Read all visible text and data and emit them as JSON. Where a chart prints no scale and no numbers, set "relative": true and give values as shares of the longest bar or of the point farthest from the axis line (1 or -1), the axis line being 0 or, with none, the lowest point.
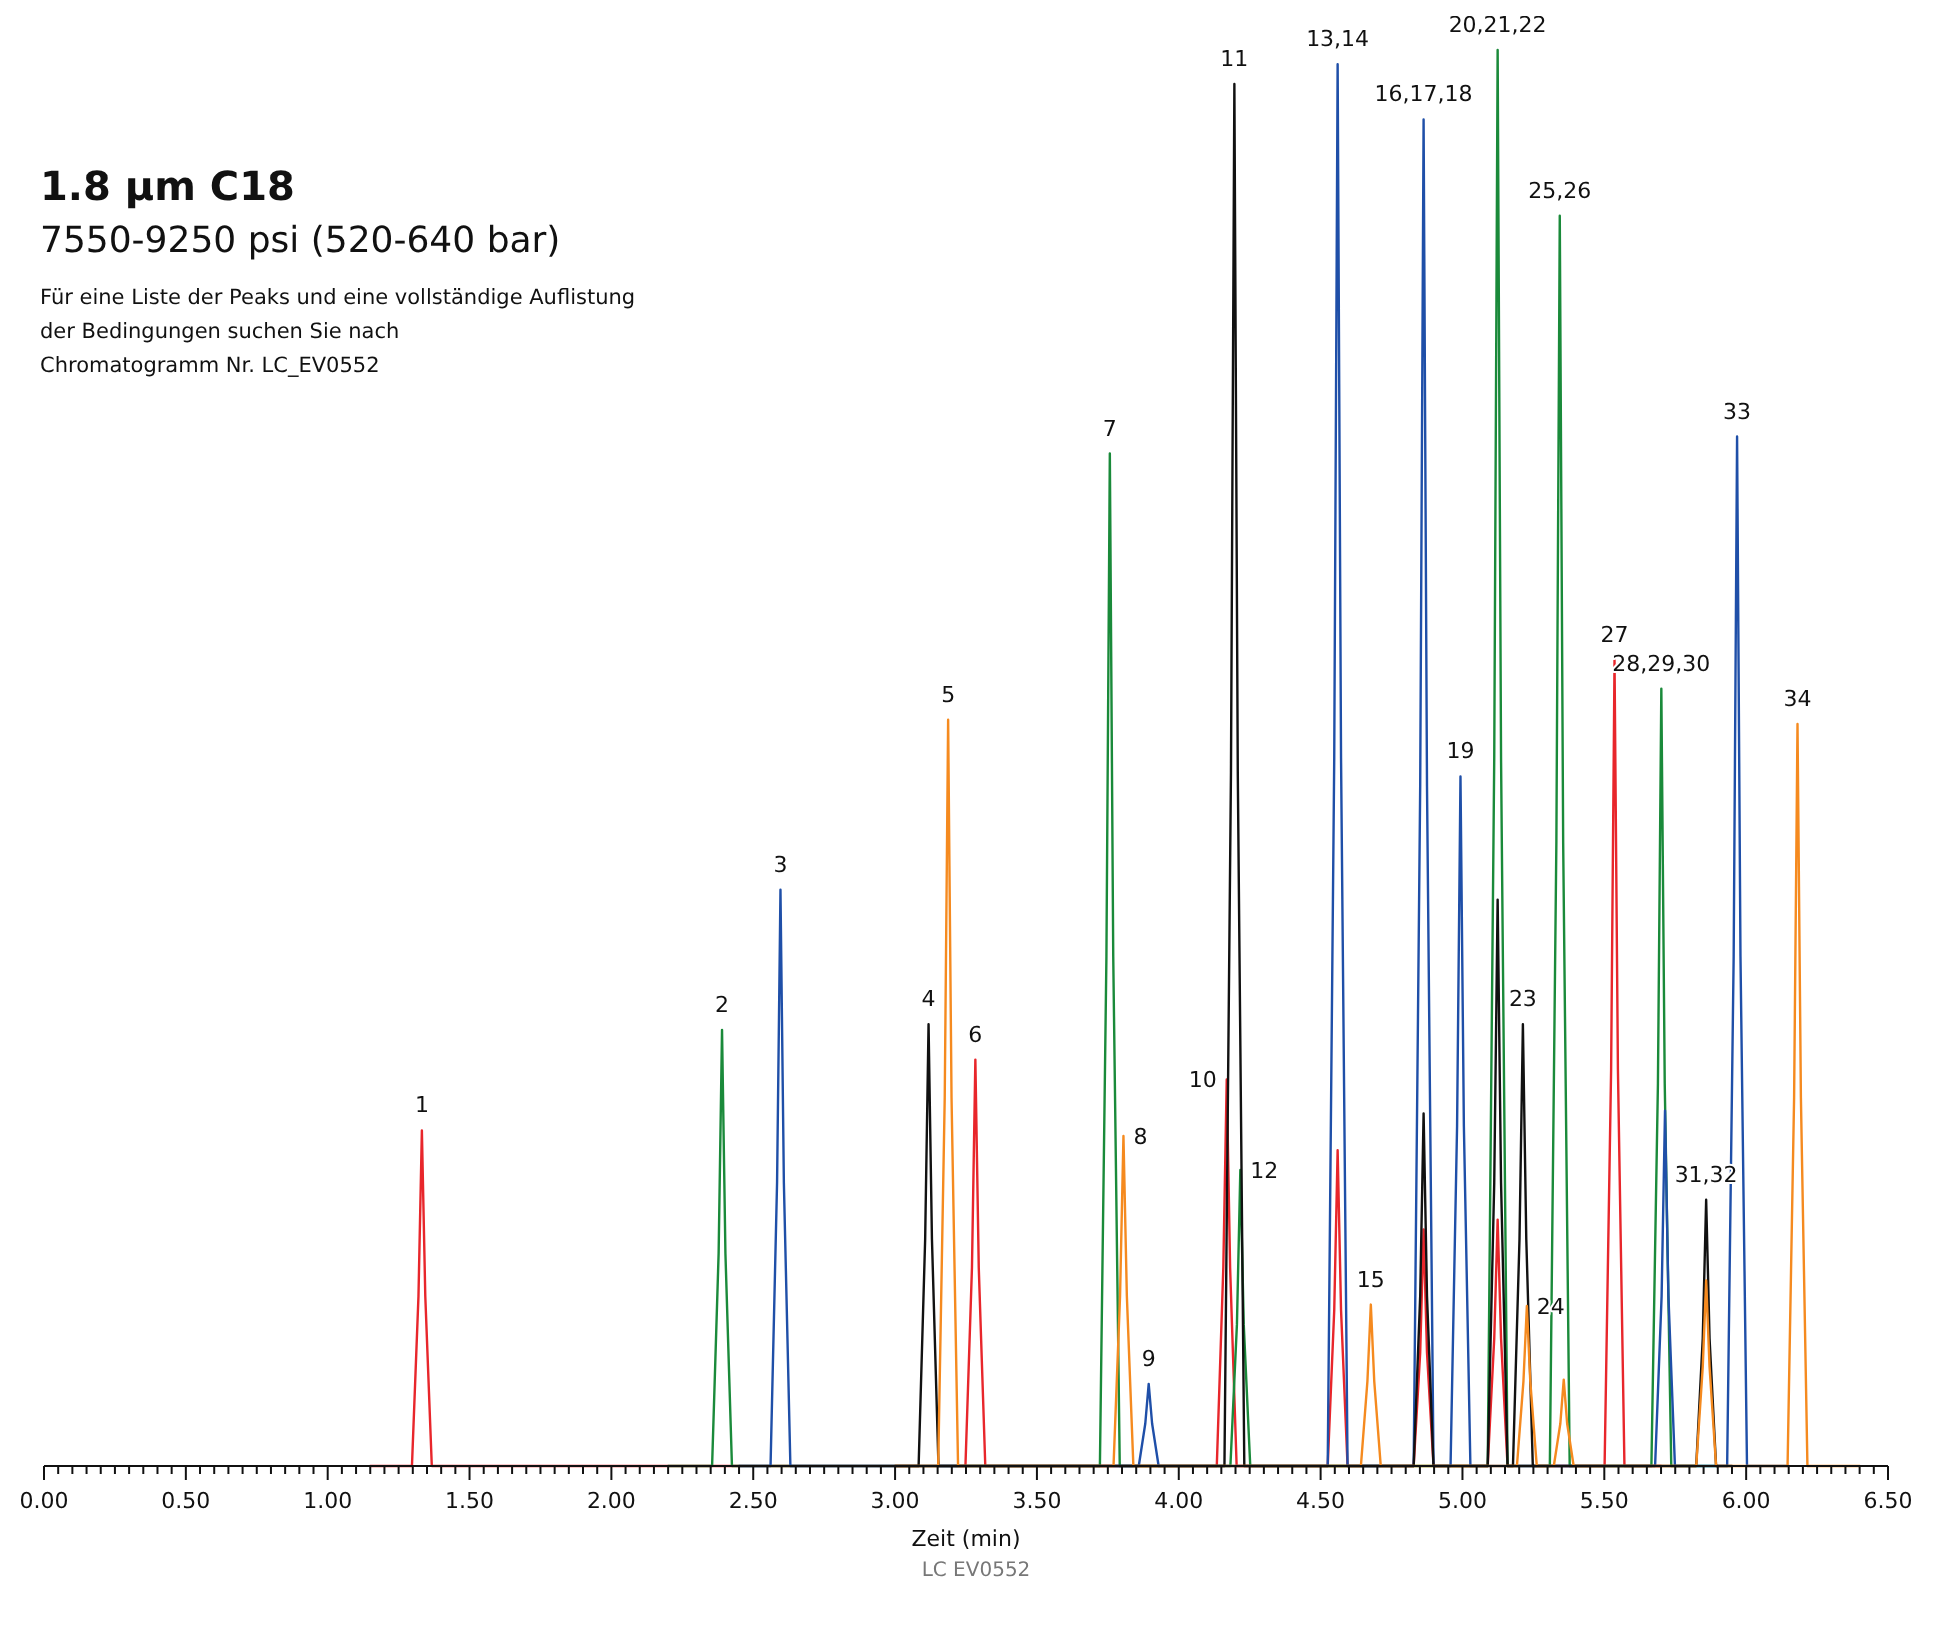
{
  "chart_data": {
    "type": "line",
    "title": "1.8 µm C18",
    "subtitle": "7550-9250 psi (520-640 bar)",
    "xlabel": "Zeit (min)",
    "relative": true,
    "xlim": [
      0,
      6.5
    ],
    "xticks": [
      {
        "value": 0,
        "label": "0.00"
      },
      {
        "value": 0.05,
        "label": null
      },
      {
        "value": 0.1,
        "label": null
      },
      {
        "value": 0.15,
        "label": null
      },
      {
        "value": 0.2,
        "label": null
      },
      {
        "value": 0.25,
        "label": null
      },
      {
        "value": 0.3,
        "label": null
      },
      {
        "value": 0.35,
        "label": null
      },
      {
        "value": 0.4,
        "label": null
      },
      {
        "value": 0.45,
        "label": null
      },
      {
        "value": 0.5,
        "label": "0.50"
      },
      {
        "value": 0.55,
        "label": null
      },
      {
        "value": 0.6,
        "label": null
      },
      {
        "value": 0.65,
        "label": null
      },
      {
        "value": 0.7,
        "label": null
      },
      {
        "value": 0.75,
        "label": null
      },
      {
        "value": 0.8,
        "label": null
      },
      {
        "value": 0.85,
        "label": null
      },
      {
        "value": 0.9,
        "label": null
      },
      {
        "value": 0.95,
        "label": null
      },
      {
        "value": 1,
        "label": "1.00"
      },
      {
        "value": 1.05,
        "label": null
      },
      {
        "value": 1.1,
        "label": null
      },
      {
        "value": 1.15,
        "label": null
      },
      {
        "value": 1.2,
        "label": null
      },
      {
        "value": 1.25,
        "label": null
      },
      {
        "value": 1.3,
        "label": null
      },
      {
        "value": 1.35,
        "label": null
      },
      {
        "value": 1.4,
        "label": null
      },
      {
        "value": 1.45,
        "label": null
      },
      {
        "value": 1.5,
        "label": "1.50"
      },
      {
        "value": 1.55,
        "label": null
      },
      {
        "value": 1.6,
        "label": null
      },
      {
        "value": 1.65,
        "label": null
      },
      {
        "value": 1.7,
        "label": null
      },
      {
        "value": 1.75,
        "label": null
      },
      {
        "value": 1.8,
        "label": null
      },
      {
        "value": 1.85,
        "label": null
      },
      {
        "value": 1.9,
        "label": null
      },
      {
        "value": 1.95,
        "label": null
      },
      {
        "value": 2,
        "label": "2.00"
      },
      {
        "value": 2.05,
        "label": null
      },
      {
        "value": 2.1,
        "label": null
      },
      {
        "value": 2.15,
        "label": null
      },
      {
        "value": 2.2,
        "label": null
      },
      {
        "value": 2.25,
        "label": null
      },
      {
        "value": 2.3,
        "label": null
      },
      {
        "value": 2.35,
        "label": null
      },
      {
        "value": 2.4,
        "label": null
      },
      {
        "value": 2.45,
        "label": null
      },
      {
        "value": 2.5,
        "label": "2.50"
      },
      {
        "value": 2.55,
        "label": null
      },
      {
        "value": 2.6,
        "label": null
      },
      {
        "value": 2.65,
        "label": null
      },
      {
        "value": 2.7,
        "label": null
      },
      {
        "value": 2.75,
        "label": null
      },
      {
        "value": 2.8,
        "label": null
      },
      {
        "value": 2.85,
        "label": null
      },
      {
        "value": 2.9,
        "label": null
      },
      {
        "value": 2.95,
        "label": null
      },
      {
        "value": 3,
        "label": "3.00"
      },
      {
        "value": 3.05,
        "label": null
      },
      {
        "value": 3.1,
        "label": null
      },
      {
        "value": 3.15,
        "label": null
      },
      {
        "value": 3.2,
        "label": null
      },
      {
        "value": 3.25,
        "label": null
      },
      {
        "value": 3.3,
        "label": null
      },
      {
        "value": 3.35,
        "label": null
      },
      {
        "value": 3.4,
        "label": null
      },
      {
        "value": 3.45,
        "label": null
      },
      {
        "value": 3.5,
        "label": "3.50"
      },
      {
        "value": 3.55,
        "label": null
      },
      {
        "value": 3.6,
        "label": null
      },
      {
        "value": 3.65,
        "label": null
      },
      {
        "value": 3.7,
        "label": null
      },
      {
        "value": 3.75,
        "label": null
      },
      {
        "value": 3.8,
        "label": null
      },
      {
        "value": 3.85,
        "label": null
      },
      {
        "value": 3.9,
        "label": null
      },
      {
        "value": 3.95,
        "label": null
      },
      {
        "value": 4,
        "label": "4.00"
      },
      {
        "value": 4.05,
        "label": null
      },
      {
        "value": 4.1,
        "label": null
      },
      {
        "value": 4.15,
        "label": null
      },
      {
        "value": 4.2,
        "label": null
      },
      {
        "value": 4.25,
        "label": null
      },
      {
        "value": 4.3,
        "label": null
      },
      {
        "value": 4.35,
        "label": null
      },
      {
        "value": 4.4,
        "label": null
      },
      {
        "value": 4.45,
        "label": null
      },
      {
        "value": 4.5,
        "label": "4.50"
      },
      {
        "value": 4.55,
        "label": null
      },
      {
        "value": 4.6,
        "label": null
      },
      {
        "value": 4.65,
        "label": null
      },
      {
        "value": 4.7,
        "label": null
      },
      {
        "value": 4.75,
        "label": null
      },
      {
        "value": 4.8,
        "label": null
      },
      {
        "value": 4.85,
        "label": null
      },
      {
        "value": 4.9,
        "label": null
      },
      {
        "value": 4.95,
        "label": null
      },
      {
        "value": 5,
        "label": "5.00"
      },
      {
        "value": 5.05,
        "label": null
      },
      {
        "value": 5.1,
        "label": null
      },
      {
        "value": 5.15,
        "label": null
      },
      {
        "value": 5.2,
        "label": null
      },
      {
        "value": 5.25,
        "label": null
      },
      {
        "value": 5.3,
        "label": null
      },
      {
        "value": 5.35,
        "label": null
      },
      {
        "value": 5.4,
        "label": null
      },
      {
        "value": 5.45,
        "label": null
      },
      {
        "value": 5.5,
        "label": "5.50"
      },
      {
        "value": 5.55,
        "label": null
      },
      {
        "value": 5.6,
        "label": null
      },
      {
        "value": 5.65,
        "label": null
      },
      {
        "value": 5.7,
        "label": null
      },
      {
        "value": 5.75,
        "label": null
      },
      {
        "value": 5.8,
        "label": null
      },
      {
        "value": 5.85,
        "label": null
      },
      {
        "value": 5.9,
        "label": null
      },
      {
        "value": 5.95,
        "label": null
      },
      {
        "value": 6,
        "label": "6.00"
      },
      {
        "value": 6.05,
        "label": null
      },
      {
        "value": 6.1,
        "label": null
      },
      {
        "value": 6.15,
        "label": null
      },
      {
        "value": 6.2,
        "label": null
      },
      {
        "value": 6.25,
        "label": null
      },
      {
        "value": 6.3,
        "label": null
      },
      {
        "value": 6.35,
        "label": null
      },
      {
        "value": 6.4,
        "label": null
      },
      {
        "value": 6.45,
        "label": null
      },
      {
        "value": 6.5,
        "label": "6.50"
      }
    ],
    "series": [
      {
        "color": "#e8262b",
        "x": [
          1.15,
          1.297,
          1.32,
          1.332,
          1.344,
          1.367,
          3.248,
          3.271,
          3.283,
          3.295,
          3.318,
          4.134,
          4.157,
          4.169,
          4.181,
          4.204,
          4.525,
          4.548,
          4.56,
          4.572,
          4.595,
          4.828,
          4.851,
          4.863,
          4.875,
          4.898,
          5.089,
          5.112,
          5.124,
          5.136,
          5.159,
          5.501,
          5.524,
          5.536,
          5.548,
          5.571,
          5.7
        ],
        "values": [
          0,
          0,
          0.12,
          0.237,
          0.12,
          0,
          0,
          0.14,
          0.287,
          0.14,
          0,
          0,
          0.14,
          0.273,
          0.14,
          0,
          0,
          0.11,
          0.223,
          0.11,
          0,
          0,
          0.08,
          0.167,
          0.08,
          0,
          0,
          0.09,
          0.174,
          0.09,
          0,
          0,
          0.28,
          0.569,
          0.28,
          0,
          0
        ]
      },
      {
        "color": "#1a8a3a",
        "x": [
          2.2,
          2.355,
          2.378,
          2.39,
          2.402,
          2.425,
          3.722,
          3.745,
          3.757,
          3.769,
          3.792,
          4.182,
          4.205,
          4.217,
          4.229,
          4.252,
          5.089,
          5.112,
          5.124,
          5.136,
          5.159,
          5.308,
          5.331,
          5.343,
          5.355,
          5.378,
          5.666,
          5.689,
          5.701,
          5.713,
          5.736,
          5.9
        ],
        "values": [
          0,
          0,
          0.15,
          0.308,
          0.15,
          0,
          0,
          0.36,
          0.715,
          0.36,
          0,
          0,
          0.1,
          0.209,
          0.1,
          0,
          0,
          0.5,
          1,
          0.5,
          0,
          0,
          0.44,
          0.883,
          0.44,
          0,
          0,
          0.27,
          0.549,
          0.27,
          0,
          0
        ]
      },
      {
        "color": "#1f4fa8",
        "x": [
          2.45,
          2.561,
          2.584,
          2.596,
          2.608,
          2.631,
          3.859,
          3.882,
          3.894,
          3.906,
          3.929,
          4.525,
          4.548,
          4.56,
          4.572,
          4.595,
          4.828,
          4.851,
          4.863,
          4.875,
          4.898,
          4.958,
          4.981,
          4.993,
          5.005,
          5.028,
          5.679,
          5.702,
          5.714,
          5.726,
          5.749,
          5.933,
          5.956,
          5.968,
          5.98,
          6.003,
          6.15
        ],
        "values": [
          0,
          0,
          0.2,
          0.407,
          0.2,
          0,
          0,
          0.03,
          0.058,
          0.03,
          0,
          0,
          0.5,
          0.99,
          0.5,
          0,
          0,
          0.48,
          0.951,
          0.48,
          0,
          0,
          0.24,
          0.487,
          0.24,
          0,
          0,
          0.12,
          0.251,
          0.12,
          0,
          0,
          0.36,
          0.727,
          0.36,
          0,
          0
        ]
      },
      {
        "color": "#111111",
        "x": [
          3.0,
          3.083,
          3.106,
          3.118,
          3.13,
          3.153,
          4.161,
          4.184,
          4.196,
          4.208,
          4.231,
          4.828,
          4.851,
          4.863,
          4.875,
          4.898,
          5.089,
          5.112,
          5.124,
          5.136,
          5.159,
          5.178,
          5.201,
          5.213,
          5.225,
          5.248,
          5.824,
          5.847,
          5.859,
          5.871,
          5.894,
          5.95
        ],
        "values": [
          0,
          0,
          0.16,
          0.312,
          0.16,
          0,
          0,
          0.49,
          0.976,
          0.49,
          0,
          0,
          0.12,
          0.249,
          0.12,
          0,
          0,
          0.2,
          0.4,
          0.2,
          0,
          0,
          0.16,
          0.312,
          0.16,
          0,
          0,
          0.09,
          0.188,
          0.09,
          0,
          0
        ]
      },
      {
        "color": "#f58a1f",
        "x": [
          3.0,
          3.152,
          3.175,
          3.187,
          3.199,
          3.222,
          3.77,
          3.793,
          3.805,
          3.817,
          3.84,
          4.642,
          4.665,
          4.677,
          4.689,
          4.712,
          5.192,
          5.215,
          5.227,
          5.239,
          5.262,
          5.322,
          5.345,
          5.357,
          5.369,
          5.392,
          5.824,
          5.847,
          5.859,
          5.871,
          5.894,
          6.146,
          6.169,
          6.181,
          6.193,
          6.216,
          6.4
        ],
        "values": [
          0,
          0,
          0.26,
          0.527,
          0.26,
          0,
          0,
          0.12,
          0.233,
          0.12,
          0,
          0,
          0.06,
          0.114,
          0.06,
          0,
          0,
          0.06,
          0.113,
          0.06,
          0,
          0,
          0.03,
          0.061,
          0.03,
          0,
          0,
          0.07,
          0.131,
          0.07,
          0,
          0,
          0.26,
          0.524,
          0.26,
          0,
          0
        ]
      }
    ],
    "annotations": [
      "Für eine Liste der Peaks und eine vollständige Auflistung\nder Bedingungen suchen Sie nach\nChromatogramm Nr. LC_EV0552",
      "LC EV0552",
      {
        "text": "1",
        "x": 1.332,
        "y": 0.237
      },
      {
        "text": "2",
        "x": 2.39,
        "y": 0.308
      },
      {
        "text": "3",
        "x": 2.596,
        "y": 0.407
      },
      {
        "text": "4",
        "x": 3.118,
        "y": 0.312
      },
      {
        "text": "5",
        "x": 3.187,
        "y": 0.527
      },
      {
        "text": "6",
        "x": 3.283,
        "y": 0.287
      },
      {
        "text": "7",
        "x": 3.757,
        "y": 0.715
      },
      {
        "text": "8",
        "x": 3.805,
        "y": 0.233
      },
      {
        "text": "9",
        "x": 3.894,
        "y": 0.058
      },
      {
        "text": "10",
        "x": 4.169,
        "y": 0.273
      },
      {
        "text": "11",
        "x": 4.196,
        "y": 0.976
      },
      {
        "text": "12",
        "x": 4.217,
        "y": 0.209
      },
      {
        "text": "13,14",
        "x": 4.56,
        "y": 0.99
      },
      {
        "text": "15",
        "x": 4.677,
        "y": 0.114
      },
      {
        "text": "16,17,18",
        "x": 4.863,
        "y": 0.951
      },
      {
        "text": "19",
        "x": 4.993,
        "y": 0.487
      },
      {
        "text": "20,21,22",
        "x": 5.124,
        "y": 1
      },
      {
        "text": "23",
        "x": 5.213,
        "y": 0.312
      },
      {
        "text": "24",
        "x": 5.227,
        "y": 0.113
      },
      {
        "text": "25,26",
        "x": 5.343,
        "y": 0.883
      },
      {
        "text": "27",
        "x": 5.536,
        "y": 0.569
      },
      {
        "text": "28,29,30",
        "x": 5.701,
        "y": 0.549
      },
      {
        "text": "31,32",
        "x": 5.859,
        "y": 0.188
      },
      {
        "text": "33",
        "x": 5.968,
        "y": 0.727
      },
      {
        "text": "34",
        "x": 6.181,
        "y": 0.524
      }
    ]
  }
}
